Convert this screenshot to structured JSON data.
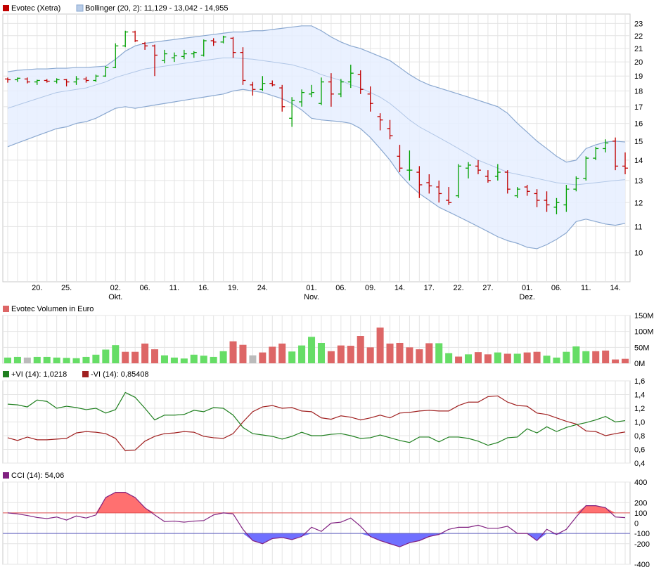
{
  "chart_data": [
    {
      "type": "ohlc",
      "series_name": "Evotec (Xetra)",
      "overlay_label": "Bollinger (20, 2): 11,129 - 13,042 - 14,955",
      "colors": {
        "up": "#00a000",
        "down": "#c00000",
        "band_fill": "#e6efff",
        "band_line": "#8aa8d0",
        "mid_line": "#b0c6e6"
      },
      "ylim": [
        9.0,
        23.8
      ],
      "y_scale": "log",
      "yticks": [
        10,
        11,
        12,
        13,
        14,
        15,
        16,
        17,
        18,
        19,
        20,
        21,
        22,
        23
      ],
      "x_ticks": [
        {
          "label": "20.",
          "i": 3
        },
        {
          "label": "25.",
          "i": 6
        },
        {
          "label": "02.",
          "sub": "Okt.",
          "i": 11
        },
        {
          "label": "06.",
          "i": 14
        },
        {
          "label": "11.",
          "i": 17
        },
        {
          "label": "16.",
          "i": 20
        },
        {
          "label": "19.",
          "i": 23
        },
        {
          "label": "24.",
          "i": 26
        },
        {
          "label": "01.",
          "sub": "Nov.",
          "i": 31
        },
        {
          "label": "06.",
          "i": 34
        },
        {
          "label": "09.",
          "i": 37
        },
        {
          "label": "14.",
          "i": 40
        },
        {
          "label": "17.",
          "i": 43
        },
        {
          "label": "22.",
          "i": 46
        },
        {
          "label": "27.",
          "i": 49
        },
        {
          "label": "01.",
          "sub": "Dez.",
          "i": 53
        },
        {
          "label": "06.",
          "i": 56
        },
        {
          "label": "11.",
          "i": 59
        },
        {
          "label": "14.",
          "i": 62
        }
      ],
      "ohlc": [
        [
          18.8,
          18.9,
          18.55,
          18.75
        ],
        [
          18.75,
          18.9,
          18.6,
          18.85
        ],
        [
          18.8,
          18.9,
          18.5,
          18.6
        ],
        [
          18.6,
          18.75,
          18.4,
          18.7
        ],
        [
          18.7,
          18.8,
          18.55,
          18.65
        ],
        [
          18.65,
          18.85,
          18.5,
          18.75
        ],
        [
          18.75,
          18.8,
          18.3,
          18.6
        ],
        [
          18.6,
          19.0,
          18.4,
          18.8
        ],
        [
          18.8,
          18.95,
          18.55,
          18.7
        ],
        [
          18.7,
          19.1,
          18.6,
          19.0
        ],
        [
          19.0,
          19.7,
          18.95,
          19.6
        ],
        [
          19.6,
          21.4,
          19.55,
          21.2
        ],
        [
          21.2,
          22.4,
          21.1,
          22.3
        ],
        [
          22.3,
          22.4,
          21.5,
          21.6
        ],
        [
          21.4,
          21.5,
          20.9,
          21.2
        ],
        [
          21.2,
          21.3,
          19.0,
          20.5
        ],
        [
          20.1,
          20.9,
          19.9,
          20.6
        ],
        [
          20.3,
          20.7,
          20.0,
          20.45
        ],
        [
          20.4,
          20.9,
          20.2,
          20.6
        ],
        [
          20.6,
          20.8,
          20.3,
          20.7
        ],
        [
          20.5,
          21.7,
          20.4,
          21.6
        ],
        [
          21.6,
          21.8,
          21.2,
          21.5
        ],
        [
          21.5,
          22.0,
          21.4,
          21.9
        ],
        [
          21.8,
          21.9,
          20.3,
          20.7
        ],
        [
          20.7,
          21.1,
          18.4,
          18.7
        ],
        [
          18.4,
          18.6,
          17.7,
          18.1
        ],
        [
          18.1,
          19.0,
          18.0,
          18.5
        ],
        [
          18.5,
          18.7,
          18.3,
          18.4
        ],
        [
          18.2,
          18.4,
          16.7,
          17.0
        ],
        [
          16.3,
          17.6,
          15.8,
          17.4
        ],
        [
          17.3,
          18.1,
          17.0,
          17.9
        ],
        [
          17.8,
          18.4,
          17.6,
          17.9
        ],
        [
          17.2,
          18.9,
          17.1,
          18.6
        ],
        [
          18.6,
          19.2,
          17.0,
          17.8
        ],
        [
          17.8,
          18.8,
          17.6,
          18.6
        ],
        [
          18.6,
          19.8,
          18.2,
          19.2
        ],
        [
          19.1,
          19.4,
          17.8,
          18.1
        ],
        [
          17.8,
          18.3,
          16.7,
          17.2
        ],
        [
          16.4,
          16.6,
          15.6,
          16.2
        ],
        [
          15.7,
          16.2,
          15.1,
          15.3
        ],
        [
          14.2,
          14.8,
          13.4,
          13.6
        ],
        [
          13.5,
          14.5,
          13.0,
          13.5
        ],
        [
          13.4,
          13.7,
          12.2,
          12.8
        ],
        [
          12.9,
          13.3,
          12.4,
          12.75
        ],
        [
          12.7,
          13.0,
          12.0,
          12.4
        ],
        [
          12.1,
          12.7,
          11.9,
          12.0
        ],
        [
          12.3,
          13.8,
          12.2,
          13.7
        ],
        [
          13.6,
          13.9,
          13.1,
          13.75
        ],
        [
          13.7,
          14.0,
          13.3,
          13.5
        ],
        [
          13.2,
          13.5,
          12.9,
          13.0
        ],
        [
          13.2,
          13.8,
          13.0,
          13.4
        ],
        [
          13.4,
          13.5,
          12.4,
          12.6
        ],
        [
          12.3,
          12.7,
          12.2,
          12.6
        ],
        [
          12.7,
          12.8,
          12.3,
          12.5
        ],
        [
          12.4,
          12.6,
          11.8,
          12.1
        ],
        [
          12.1,
          12.5,
          11.6,
          11.9
        ],
        [
          11.8,
          12.2,
          11.5,
          12.0
        ],
        [
          11.9,
          12.8,
          11.6,
          12.6
        ],
        [
          12.6,
          13.2,
          12.5,
          13.1
        ],
        [
          13.1,
          14.2,
          13.0,
          14.1
        ],
        [
          14.1,
          14.7,
          14.0,
          14.6
        ],
        [
          14.6,
          15.1,
          14.4,
          14.9
        ],
        [
          15.0,
          15.2,
          13.5,
          13.7
        ],
        [
          13.7,
          14.4,
          13.3,
          13.6
        ]
      ],
      "bb_upper": [
        19.3,
        19.4,
        19.45,
        19.5,
        19.5,
        19.55,
        19.55,
        19.6,
        19.6,
        19.65,
        19.7,
        20.2,
        20.8,
        21.2,
        21.4,
        21.5,
        21.6,
        21.7,
        21.8,
        21.9,
        22.0,
        22.1,
        22.2,
        22.3,
        22.3,
        22.4,
        22.4,
        22.5,
        22.6,
        22.7,
        22.8,
        22.8,
        22.4,
        21.9,
        21.5,
        21.2,
        21.0,
        20.7,
        20.4,
        20.1,
        19.6,
        19.1,
        18.7,
        18.4,
        18.2,
        18.0,
        17.8,
        17.6,
        17.4,
        17.2,
        17.0,
        16.6,
        16.0,
        15.5,
        15.0,
        14.6,
        14.2,
        13.9,
        14.0,
        14.6,
        14.8,
        14.95,
        15.0,
        14.955
      ],
      "bb_middle": [
        16.9,
        17.1,
        17.3,
        17.5,
        17.7,
        17.9,
        18.0,
        18.1,
        18.2,
        18.4,
        18.6,
        18.9,
        19.1,
        19.3,
        19.5,
        19.6,
        19.7,
        19.8,
        19.9,
        20.0,
        20.1,
        20.2,
        20.3,
        20.3,
        20.25,
        20.2,
        20.1,
        20.0,
        19.9,
        19.8,
        19.6,
        19.4,
        19.1,
        18.9,
        18.7,
        18.4,
        18.2,
        17.9,
        17.6,
        17.2,
        16.7,
        16.2,
        15.8,
        15.5,
        15.2,
        14.9,
        14.6,
        14.3,
        14.0,
        13.8,
        13.6,
        13.4,
        13.3,
        13.2,
        13.1,
        13.0,
        12.9,
        12.85,
        12.8,
        12.85,
        12.9,
        12.95,
        13.0,
        13.042
      ],
      "bb_lower": [
        14.7,
        14.9,
        15.1,
        15.3,
        15.5,
        15.7,
        15.8,
        16.0,
        16.1,
        16.3,
        16.6,
        16.9,
        17.0,
        16.9,
        17.0,
        17.1,
        17.2,
        17.3,
        17.4,
        17.5,
        17.6,
        17.7,
        17.8,
        18.0,
        18.1,
        18.0,
        17.9,
        17.7,
        17.5,
        17.2,
        16.8,
        16.3,
        16.2,
        16.15,
        16.1,
        16.0,
        15.7,
        15.2,
        14.6,
        14.0,
        13.3,
        12.8,
        12.4,
        12.1,
        11.8,
        11.6,
        11.4,
        11.2,
        11.0,
        10.8,
        10.6,
        10.45,
        10.35,
        10.2,
        10.15,
        10.3,
        10.5,
        10.75,
        11.2,
        11.3,
        11.2,
        11.1,
        11.05,
        11.129
      ]
    },
    {
      "type": "bar",
      "title": "Evotec Volumen in Euro",
      "ylim": [
        0,
        150
      ],
      "yticks": [
        "150M",
        "100M",
        "50M",
        "0M"
      ],
      "ytick_values": [
        150,
        100,
        50,
        0
      ],
      "colors": {
        "up": "#66dd66",
        "down": "#dd6666",
        "flat": "#bbbbbb"
      },
      "values": [
        18,
        20,
        18,
        20,
        20,
        18,
        17,
        16,
        20,
        27,
        43,
        57,
        36,
        36,
        62,
        44,
        25,
        18,
        15,
        27,
        24,
        20,
        38,
        69,
        58,
        25,
        34,
        52,
        62,
        37,
        56,
        83,
        64,
        38,
        56,
        55,
        86,
        50,
        112,
        62,
        64,
        50,
        44,
        63,
        63,
        32,
        21,
        28,
        35,
        28,
        34,
        30,
        30,
        34,
        36,
        24,
        18,
        36,
        53,
        38,
        38,
        40,
        12,
        14
      ],
      "directions": [
        "u",
        "u",
        "f",
        "u",
        "u",
        "u",
        "u",
        "u",
        "u",
        "u",
        "u",
        "u",
        "d",
        "d",
        "d",
        "d",
        "u",
        "u",
        "u",
        "u",
        "u",
        "u",
        "u",
        "d",
        "d",
        "f",
        "d",
        "d",
        "d",
        "u",
        "u",
        "u",
        "u",
        "d",
        "d",
        "d",
        "d",
        "d",
        "d",
        "d",
        "d",
        "d",
        "d",
        "d",
        "u",
        "u",
        "d",
        "u",
        "d",
        "d",
        "u",
        "d",
        "u",
        "d",
        "d",
        "u",
        "u",
        "u",
        "u",
        "u",
        "d",
        "d",
        "d",
        "d"
      ]
    },
    {
      "type": "line",
      "ylim": [
        0.4,
        1.6
      ],
      "yticks": [
        "1,6",
        "1,4",
        "1,2",
        "1,0",
        "0,8",
        "0,6",
        "0,4"
      ],
      "ytick_values": [
        1.6,
        1.4,
        1.2,
        1.0,
        0.8,
        0.6,
        0.4
      ],
      "series": [
        {
          "name": "+VI (14): 1,0218",
          "color": "#208020",
          "values": [
            1.26,
            1.25,
            1.22,
            1.32,
            1.3,
            1.2,
            1.23,
            1.21,
            1.18,
            1.2,
            1.13,
            1.18,
            1.43,
            1.36,
            1.2,
            1.03,
            1.1,
            1.1,
            1.11,
            1.17,
            1.15,
            1.21,
            1.2,
            1.1,
            0.92,
            0.83,
            0.81,
            0.79,
            0.75,
            0.79,
            0.85,
            0.8,
            0.8,
            0.82,
            0.83,
            0.8,
            0.76,
            0.77,
            0.81,
            0.77,
            0.73,
            0.7,
            0.78,
            0.78,
            0.71,
            0.78,
            0.78,
            0.76,
            0.72,
            0.66,
            0.7,
            0.77,
            0.78,
            0.9,
            0.84,
            0.93,
            0.86,
            0.92,
            0.96,
            0.99,
            1.03,
            1.08,
            1.0,
            1.02
          ]
        },
        {
          "name": "-VI (14): 0,85408",
          "color": "#a02020",
          "values": [
            0.77,
            0.73,
            0.78,
            0.74,
            0.74,
            0.75,
            0.76,
            0.84,
            0.86,
            0.85,
            0.83,
            0.76,
            0.58,
            0.59,
            0.72,
            0.79,
            0.83,
            0.84,
            0.86,
            0.85,
            0.79,
            0.77,
            0.76,
            0.83,
            1.0,
            1.15,
            1.22,
            1.24,
            1.2,
            1.21,
            1.16,
            1.15,
            1.06,
            1.04,
            1.09,
            1.07,
            1.03,
            1.06,
            1.1,
            1.06,
            1.13,
            1.14,
            1.16,
            1.17,
            1.16,
            1.16,
            1.24,
            1.29,
            1.29,
            1.37,
            1.38,
            1.29,
            1.24,
            1.23,
            1.13,
            1.11,
            1.06,
            1.01,
            0.97,
            0.87,
            0.86,
            0.8,
            0.83,
            0.854
          ]
        }
      ]
    },
    {
      "type": "area",
      "series_name": "CCI (14): 54,06",
      "ylim": [
        -400,
        400
      ],
      "yticks": [
        "400",
        "200",
        "100",
        "0",
        "-100",
        "-200",
        "-400"
      ],
      "ytick_values": [
        400,
        200,
        100,
        0,
        -100,
        -200,
        -400
      ],
      "thresholds": [
        100,
        -100
      ],
      "colors": {
        "line": "#802080",
        "above": "#ff7070",
        "below": "#7070ff",
        "plus100": "#e05050",
        "minus100": "#6060c0"
      },
      "values": [
        100,
        90,
        75,
        55,
        45,
        60,
        30,
        70,
        50,
        80,
        250,
        300,
        300,
        250,
        150,
        80,
        15,
        20,
        10,
        20,
        25,
        80,
        100,
        90,
        -60,
        -170,
        -200,
        -150,
        -140,
        -160,
        -130,
        -40,
        -80,
        0,
        10,
        50,
        -30,
        -130,
        -170,
        -200,
        -230,
        -190,
        -170,
        -130,
        -110,
        -60,
        -40,
        -40,
        -20,
        -50,
        -50,
        -30,
        -100,
        -100,
        -170,
        -60,
        -110,
        -60,
        60,
        170,
        170,
        150,
        60,
        54
      ]
    }
  ]
}
